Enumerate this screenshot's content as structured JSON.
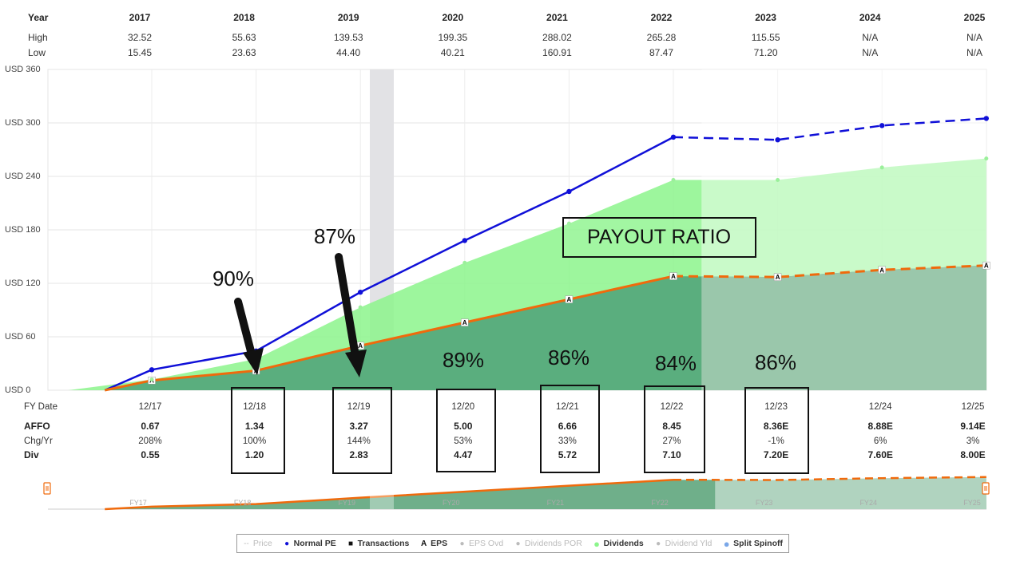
{
  "header": {
    "year_label": "Year",
    "high_label": "High",
    "low_label": "Low",
    "years": [
      "2017",
      "2018",
      "2019",
      "2020",
      "2021",
      "2022",
      "2023",
      "2024",
      "2025"
    ],
    "high": [
      "32.52",
      "55.63",
      "139.53",
      "199.35",
      "288.02",
      "265.28",
      "115.55",
      "N/A",
      "N/A"
    ],
    "low": [
      "15.45",
      "23.63",
      "44.40",
      "40.21",
      "160.91",
      "87.47",
      "71.20",
      "N/A",
      "N/A"
    ]
  },
  "chart_data": {
    "type": "area",
    "y_ticks": [
      "USD 0",
      "USD 60",
      "USD 120",
      "USD 180",
      "USD 240",
      "USD 300",
      "USD 360"
    ],
    "ylim": [
      0,
      360
    ],
    "x_ticks": [
      "12/17",
      "12/18",
      "12/19",
      "12/20",
      "12/21",
      "12/22",
      "12/23",
      "12/24",
      "12/25"
    ],
    "xlim": [
      2016.45,
      2025.0
    ],
    "grid": true,
    "series": [
      {
        "name": "Normal PE",
        "color": "#1010d8",
        "points": [
          [
            2016.55,
            0
          ],
          [
            2017.0,
            23
          ],
          [
            2018.0,
            44
          ],
          [
            2019.0,
            110
          ],
          [
            2020.0,
            168
          ],
          [
            2021.0,
            223
          ],
          [
            2022.0,
            284
          ],
          [
            2023.0,
            281
          ],
          [
            2024.0,
            297
          ],
          [
            2025.0,
            305
          ]
        ],
        "dashed_from": 2022.0
      },
      {
        "name": "Dividends",
        "color": "#8cf58c",
        "points": [
          [
            2016.2,
            0
          ],
          [
            2017.0,
            12
          ],
          [
            2018.0,
            35
          ],
          [
            2019.0,
            93
          ],
          [
            2020.0,
            143
          ],
          [
            2021.0,
            187
          ],
          [
            2022.0,
            236
          ],
          [
            2023.0,
            236
          ],
          [
            2024.0,
            250
          ],
          [
            2025.0,
            260
          ]
        ]
      },
      {
        "name": "EPS",
        "color": "#f06a0c",
        "points": [
          [
            2016.55,
            0
          ],
          [
            2017.0,
            11
          ],
          [
            2018.0,
            22
          ],
          [
            2019.0,
            50
          ],
          [
            2020.0,
            76
          ],
          [
            2021.0,
            102
          ],
          [
            2022.0,
            128
          ],
          [
            2023.0,
            127
          ],
          [
            2024.0,
            135
          ],
          [
            2025.0,
            140
          ]
        ],
        "dashed_from": 2022.0
      }
    ]
  },
  "fy_label": "FY Date",
  "rows": {
    "affo_label": "AFFO",
    "chg_label": "Chg/Yr",
    "div_label": "Div",
    "affo": [
      "0.67",
      "1.34",
      "3.27",
      "5.00",
      "6.66",
      "8.45",
      "8.36E",
      "8.88E",
      "9.14E"
    ],
    "chg": [
      "208%",
      "100%",
      "144%",
      "53%",
      "33%",
      "27%",
      "-1%",
      "6%",
      "3%"
    ],
    "div": [
      "0.55",
      "1.20",
      "2.83",
      "4.47",
      "5.72",
      "7.10",
      "7.20E",
      "7.60E",
      "8.00E"
    ]
  },
  "navigator": {
    "labels": [
      "FY17",
      "FY18",
      "FY19",
      "FY20",
      "FY21",
      "FY22",
      "FY23",
      "FY24",
      "FY25"
    ]
  },
  "annotations": {
    "payout_ratio": "PAYOUT RATIO",
    "ratios": [
      "90%",
      "87%",
      "89%",
      "86%",
      "84%",
      "86%"
    ]
  },
  "legend": [
    {
      "label": "Price",
      "symbol": "--",
      "active": false
    },
    {
      "label": "Normal PE",
      "symbol": "●",
      "active": true,
      "color": "#1010d8"
    },
    {
      "label": "Transactions",
      "symbol": "■",
      "active": true,
      "color": "#111111"
    },
    {
      "label": "EPS",
      "symbol": "A",
      "active": true,
      "color": "#111111"
    },
    {
      "label": "EPS Ovd",
      "symbol": "●",
      "active": false
    },
    {
      "label": "Dividends POR",
      "symbol": "●",
      "active": false
    },
    {
      "label": "Dividends",
      "symbol": "●",
      "active": true,
      "color": "#8cf58c"
    },
    {
      "label": "Dividend Yld",
      "symbol": "●",
      "active": false
    },
    {
      "label": "Split Spinoff",
      "symbol": "●",
      "active": true,
      "color": "#7aa7e8"
    }
  ],
  "colors": {
    "dark_green": "#5aae7e",
    "forecast_green": "#9ac7ab",
    "shade_bar": "#e2e2e5"
  }
}
